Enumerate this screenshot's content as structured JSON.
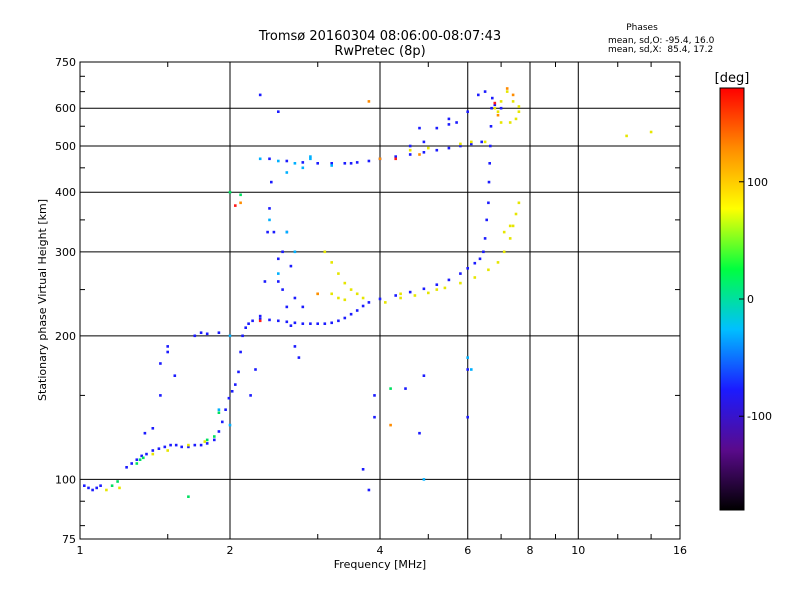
{
  "header": {
    "title": "Tromsø 20160304 08:06:00-08:07:43",
    "subtitle": "RwPretec (8p)"
  },
  "phase_box": {
    "heading": "Phases",
    "line1": "mean, sd,O: -95.4, 16.0",
    "line2": "mean, sd,X:  85.4, 17.2"
  },
  "chart_data": {
    "type": "scatter",
    "title": "Tromsø 20160304 08:06:00-08:07:43",
    "subtitle": "RwPretec (8p)",
    "xlabel": "Frequency [MHz]",
    "ylabel": "Stationary phase Virtual Height [km]",
    "x_scale": "log",
    "y_scale": "log",
    "xlim": [
      1,
      16
    ],
    "ylim": [
      75,
      750
    ],
    "x_ticks": [
      1,
      2,
      4,
      6,
      8,
      10,
      16
    ],
    "y_ticks": [
      75,
      100,
      200,
      300,
      400,
      500,
      600,
      750
    ],
    "x_grid": [
      2,
      4,
      6,
      8,
      10
    ],
    "y_grid": [
      100,
      200,
      300,
      400,
      500,
      600
    ],
    "grid": true,
    "colorbar": {
      "label": "[deg]",
      "range": [
        -180,
        180
      ],
      "ticks": [
        100,
        0,
        -100
      ],
      "colors": [
        "#000000",
        "#5a0a8c",
        "#1b1bff",
        "#00c0ff",
        "#00ff40",
        "#ffff00",
        "#ff8c00",
        "#ff0000"
      ]
    },
    "series": [
      {
        "color": "#1b1bff",
        "phase": -95,
        "points": [
          [
            1.02,
            97
          ],
          [
            1.04,
            96
          ],
          [
            1.06,
            95
          ],
          [
            1.08,
            96
          ],
          [
            1.1,
            97
          ],
          [
            1.24,
            106
          ],
          [
            1.27,
            108
          ],
          [
            1.3,
            110
          ],
          [
            1.33,
            112
          ],
          [
            1.36,
            113
          ],
          [
            1.4,
            115
          ],
          [
            1.44,
            116
          ],
          [
            1.48,
            117
          ],
          [
            1.52,
            118
          ],
          [
            1.56,
            118
          ],
          [
            1.6,
            117
          ],
          [
            1.65,
            117
          ],
          [
            1.7,
            118
          ],
          [
            1.75,
            118
          ],
          [
            1.8,
            119
          ],
          [
            1.86,
            121
          ],
          [
            1.9,
            126
          ],
          [
            1.93,
            132
          ],
          [
            1.96,
            140
          ],
          [
            1.99,
            148
          ],
          [
            2.02,
            153
          ],
          [
            2.05,
            158
          ],
          [
            2.08,
            168
          ],
          [
            2.1,
            185
          ],
          [
            2.12,
            200
          ],
          [
            2.15,
            208
          ],
          [
            2.18,
            212
          ],
          [
            2.22,
            215
          ],
          [
            2.3,
            217
          ],
          [
            2.4,
            216
          ],
          [
            2.5,
            215
          ],
          [
            2.6,
            214
          ],
          [
            2.7,
            213
          ],
          [
            2.8,
            212
          ],
          [
            2.9,
            212
          ],
          [
            3.0,
            212
          ],
          [
            3.1,
            212
          ],
          [
            3.2,
            213
          ],
          [
            3.3,
            215
          ],
          [
            3.4,
            218
          ],
          [
            3.5,
            222
          ],
          [
            3.6,
            226
          ],
          [
            3.7,
            231
          ],
          [
            3.8,
            235
          ],
          [
            4.0,
            239
          ],
          [
            4.3,
            243
          ],
          [
            4.6,
            247
          ],
          [
            4.9,
            251
          ],
          [
            5.2,
            256
          ],
          [
            5.5,
            262
          ],
          [
            5.8,
            270
          ],
          [
            6.0,
            277
          ],
          [
            6.2,
            284
          ],
          [
            6.35,
            290
          ],
          [
            6.45,
            300
          ],
          [
            6.5,
            320
          ],
          [
            6.55,
            350
          ],
          [
            6.6,
            380
          ],
          [
            6.62,
            420
          ],
          [
            6.64,
            460
          ],
          [
            6.66,
            500
          ],
          [
            6.68,
            550
          ],
          [
            6.7,
            600
          ],
          [
            6.72,
            630
          ],
          [
            2.4,
            470
          ],
          [
            2.6,
            465
          ],
          [
            2.8,
            462
          ],
          [
            3.0,
            460
          ],
          [
            3.2,
            460
          ],
          [
            3.4,
            460
          ],
          [
            3.6,
            462
          ],
          [
            3.8,
            465
          ],
          [
            4.0,
            470
          ],
          [
            4.3,
            475
          ],
          [
            4.6,
            480
          ],
          [
            4.9,
            485
          ],
          [
            5.2,
            490
          ],
          [
            5.5,
            495
          ],
          [
            5.8,
            500
          ],
          [
            6.1,
            505
          ],
          [
            6.4,
            510
          ],
          [
            2.2,
            150
          ],
          [
            2.25,
            170
          ],
          [
            2.3,
            220
          ],
          [
            2.35,
            260
          ],
          [
            2.38,
            330
          ],
          [
            2.4,
            370
          ],
          [
            2.42,
            420
          ],
          [
            2.45,
            330
          ],
          [
            2.5,
            290
          ],
          [
            2.55,
            250
          ],
          [
            2.6,
            230
          ],
          [
            2.65,
            210
          ],
          [
            2.7,
            190
          ],
          [
            2.75,
            180
          ],
          [
            2.5,
            260
          ],
          [
            2.55,
            300
          ],
          [
            2.6,
            330
          ],
          [
            2.65,
            280
          ],
          [
            2.7,
            240
          ],
          [
            2.8,
            230
          ],
          [
            1.45,
            175
          ],
          [
            1.5,
            185
          ],
          [
            1.55,
            165
          ],
          [
            1.45,
            150
          ],
          [
            1.35,
            125
          ],
          [
            1.4,
            128
          ],
          [
            1.7,
            200
          ],
          [
            1.75,
            203
          ],
          [
            1.8,
            202
          ],
          [
            1.9,
            203
          ],
          [
            1.5,
            190
          ],
          [
            3.5,
            460
          ],
          [
            4.6,
            500
          ],
          [
            4.9,
            510
          ],
          [
            5.2,
            545
          ],
          [
            5.5,
            555
          ],
          [
            5.7,
            560
          ],
          [
            6.3,
            640
          ],
          [
            6.5,
            650
          ],
          [
            6.8,
            610
          ],
          [
            7.0,
            600
          ],
          [
            6.0,
            590
          ],
          [
            5.5,
            570
          ],
          [
            4.8,
            545
          ],
          [
            2.3,
            640
          ],
          [
            2.5,
            590
          ],
          [
            3.8,
            95
          ],
          [
            3.7,
            105
          ],
          [
            3.9,
            135
          ],
          [
            4.8,
            125
          ],
          [
            4.9,
            165
          ],
          [
            4.5,
            155
          ],
          [
            3.9,
            150
          ],
          [
            6.0,
            170
          ],
          [
            6.0,
            135
          ]
        ]
      },
      {
        "color": "#00b0ff",
        "phase": -40,
        "points": [
          [
            2.3,
            470
          ],
          [
            2.5,
            465
          ],
          [
            2.7,
            460
          ],
          [
            2.9,
            470
          ],
          [
            3.2,
            455
          ],
          [
            2.6,
            440
          ],
          [
            2.8,
            450
          ],
          [
            2.6,
            330
          ],
          [
            2.7,
            300
          ],
          [
            2.5,
            270
          ],
          [
            1.9,
            140
          ],
          [
            2.0,
            130
          ],
          [
            6.0,
            180
          ],
          [
            6.1,
            170
          ],
          [
            4.9,
            100
          ],
          [
            2.0,
            200
          ],
          [
            2.9,
            475
          ],
          [
            2.4,
            350
          ]
        ]
      },
      {
        "color": "#00e060",
        "phase": 20,
        "points": [
          [
            1.16,
            97
          ],
          [
            1.19,
            99
          ],
          [
            1.3,
            108
          ],
          [
            1.32,
            110
          ],
          [
            1.34,
            111
          ],
          [
            1.8,
            121
          ],
          [
            1.86,
            123
          ],
          [
            1.65,
            92
          ],
          [
            1.9,
            138
          ],
          [
            2.0,
            400
          ],
          [
            2.1,
            395
          ],
          [
            4.2,
            155
          ]
        ]
      },
      {
        "color": "#e6e600",
        "phase": 90,
        "points": [
          [
            1.13,
            95
          ],
          [
            1.2,
            96
          ],
          [
            1.4,
            113
          ],
          [
            1.5,
            115
          ],
          [
            1.65,
            118
          ],
          [
            1.78,
            120
          ],
          [
            3.1,
            300
          ],
          [
            3.2,
            285
          ],
          [
            3.3,
            270
          ],
          [
            3.4,
            258
          ],
          [
            3.5,
            250
          ],
          [
            3.6,
            245
          ],
          [
            3.7,
            240
          ],
          [
            3.4,
            238
          ],
          [
            3.2,
            245
          ],
          [
            4.4,
            240
          ],
          [
            4.7,
            243
          ],
          [
            5.0,
            246
          ],
          [
            5.4,
            252
          ],
          [
            5.8,
            258
          ],
          [
            6.2,
            265
          ],
          [
            6.6,
            275
          ],
          [
            6.9,
            285
          ],
          [
            7.1,
            300
          ],
          [
            7.3,
            320
          ],
          [
            7.4,
            340
          ],
          [
            7.5,
            360
          ],
          [
            7.6,
            380
          ],
          [
            7.3,
            340
          ],
          [
            7.1,
            330
          ],
          [
            6.8,
            600
          ],
          [
            7.0,
            620
          ],
          [
            7.2,
            650
          ],
          [
            7.4,
            620
          ],
          [
            7.6,
            590
          ],
          [
            7.5,
            570
          ],
          [
            7.3,
            560
          ],
          [
            7.0,
            560
          ],
          [
            6.9,
            590
          ],
          [
            7.6,
            605
          ],
          [
            5.8,
            505
          ],
          [
            6.1,
            510
          ],
          [
            6.5,
            510
          ],
          [
            4.6,
            490
          ],
          [
            5.0,
            495
          ],
          [
            12.5,
            525
          ],
          [
            14.0,
            535
          ],
          [
            4.1,
            235
          ],
          [
            4.4,
            245
          ],
          [
            5.2,
            250
          ],
          [
            3.0,
            245
          ],
          [
            3.3,
            240
          ]
        ]
      },
      {
        "color": "#ff8c00",
        "phase": 150,
        "points": [
          [
            3.8,
            620
          ],
          [
            4.2,
            130
          ],
          [
            4.8,
            480
          ],
          [
            2.1,
            380
          ],
          [
            7.2,
            660
          ],
          [
            6.9,
            580
          ],
          [
            4.0,
            470
          ],
          [
            7.4,
            640
          ],
          [
            3.0,
            245
          ]
        ]
      },
      {
        "color": "#ff1a1a",
        "phase": 175,
        "points": [
          [
            2.05,
            375
          ],
          [
            4.3,
            470
          ],
          [
            6.8,
            615
          ],
          [
            2.3,
            215
          ]
        ]
      }
    ]
  }
}
